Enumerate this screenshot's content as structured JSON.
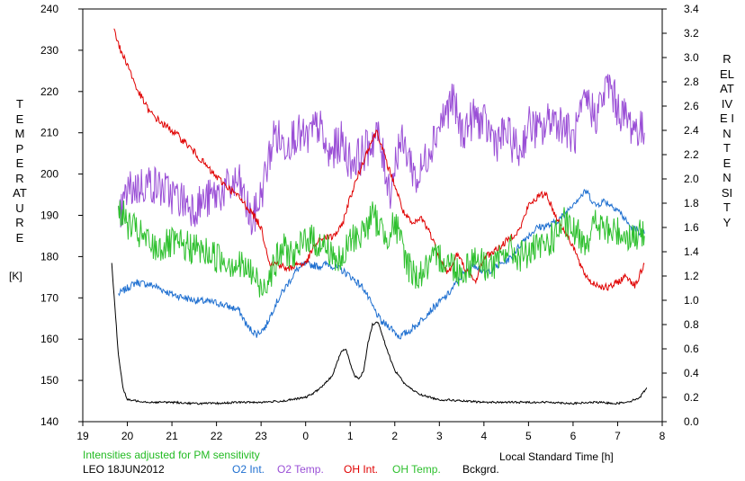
{
  "chart_data": {
    "type": "line",
    "note": "Intensities adjusted for PM sensitivity",
    "site_date": "LEO 18JUN2012",
    "xlabel": "Local Standard Time [h]",
    "ylabel_left": "TEMPERATURE",
    "ylabel_left_unit": "[K]",
    "ylabel_right": "RELATIVE INTENSITY",
    "x_ticks": [
      "19",
      "20",
      "21",
      "22",
      "23",
      "0",
      "1",
      "2",
      "3",
      "4",
      "5",
      "6",
      "7",
      "8"
    ],
    "xlim": [
      19,
      32
    ],
    "ylim_left": [
      140,
      240
    ],
    "ylim_right": [
      0.0,
      3.4
    ],
    "y_left_ticks": [
      "140",
      "150",
      "160",
      "170",
      "180",
      "190",
      "200",
      "210",
      "220",
      "230",
      "240"
    ],
    "y_right_ticks": [
      "0.0",
      "0.2",
      "0.4",
      "0.6",
      "0.8",
      "1.0",
      "1.2",
      "1.4",
      "1.6",
      "1.8",
      "2.0",
      "2.2",
      "2.4",
      "2.6",
      "2.8",
      "3.0",
      "3.2",
      "3.4"
    ],
    "colors": {
      "o2_int": "#1e6fd0",
      "o2_temp": "#9a4fd6",
      "oh_int": "#e00000",
      "oh_temp": "#2ec02e",
      "bckgrd": "#000000",
      "note": "#22bb22"
    },
    "series": [
      {
        "name": "O2 Int.",
        "axis": "right",
        "color": "#1e6fd0",
        "noise": 0.03,
        "x": [
          19.8,
          20.2,
          20.6,
          21.0,
          21.5,
          22.0,
          22.5,
          22.7,
          22.9,
          23.1,
          23.3,
          23.5,
          23.8,
          24.0,
          24.3,
          24.5,
          24.8,
          25.0,
          25.3,
          25.5,
          25.7,
          25.9,
          26.1,
          26.3,
          26.5,
          26.7,
          26.9,
          27.2,
          27.5,
          27.8,
          28.0,
          28.3,
          28.6,
          28.9,
          29.2,
          29.5,
          29.8,
          30.0,
          30.3,
          30.5,
          30.7,
          31.0,
          31.3,
          31.6
        ],
        "y": [
          1.05,
          1.15,
          1.12,
          1.05,
          1.0,
          0.98,
          0.92,
          0.78,
          0.72,
          0.78,
          0.95,
          1.08,
          1.25,
          1.3,
          1.28,
          1.3,
          1.25,
          1.2,
          1.1,
          0.95,
          0.82,
          0.78,
          0.7,
          0.74,
          0.8,
          0.88,
          0.95,
          1.05,
          1.2,
          1.3,
          1.22,
          1.28,
          1.35,
          1.5,
          1.6,
          1.62,
          1.7,
          1.8,
          1.9,
          1.78,
          1.82,
          1.75,
          1.6,
          1.55
        ]
      },
      {
        "name": "O2 Temp.",
        "axis": "left",
        "color": "#9a4fd6",
        "noise": 5,
        "x": [
          19.8,
          20.0,
          20.5,
          21.0,
          21.5,
          22.0,
          22.5,
          22.8,
          23.0,
          23.3,
          23.5,
          23.8,
          24.0,
          24.3,
          24.5,
          24.8,
          25.0,
          25.3,
          25.6,
          25.9,
          26.1,
          26.3,
          26.5,
          26.8,
          27.0,
          27.3,
          27.5,
          27.8,
          28.0,
          28.3,
          28.5,
          28.8,
          29.0,
          29.3,
          29.5,
          29.8,
          30.0,
          30.3,
          30.5,
          30.8,
          31.0,
          31.3,
          31.6
        ],
        "y": [
          188,
          196,
          198,
          195,
          192,
          195,
          198,
          188,
          195,
          210,
          207,
          210,
          208,
          212,
          204,
          208,
          203,
          205,
          210,
          196,
          208,
          205,
          198,
          207,
          212,
          218,
          210,
          214,
          212,
          208,
          210,
          205,
          212,
          210,
          214,
          212,
          208,
          218,
          214,
          222,
          216,
          212,
          210
        ]
      },
      {
        "name": "OH Int.",
        "axis": "right",
        "color": "#e00000",
        "noise": 0.03,
        "x": [
          19.7,
          19.85,
          20.0,
          20.2,
          20.5,
          20.8,
          21.0,
          21.3,
          21.6,
          21.9,
          22.2,
          22.5,
          22.8,
          23.0,
          23.2,
          23.4,
          23.6,
          23.8,
          24.0,
          24.2,
          24.4,
          24.6,
          24.8,
          25.0,
          25.2,
          25.4,
          25.6,
          25.8,
          26.0,
          26.2,
          26.4,
          26.6,
          26.8,
          27.0,
          27.2,
          27.4,
          27.6,
          27.8,
          28.0,
          28.2,
          28.4,
          28.6,
          28.8,
          29.0,
          29.2,
          29.4,
          29.6,
          29.8,
          30.0,
          30.2,
          30.4,
          30.6,
          30.8,
          31.0,
          31.2,
          31.4,
          31.6
        ],
        "y": [
          3.25,
          3.05,
          2.95,
          2.75,
          2.55,
          2.45,
          2.4,
          2.3,
          2.18,
          2.05,
          1.95,
          1.85,
          1.72,
          1.6,
          1.3,
          1.3,
          1.25,
          1.3,
          1.3,
          1.45,
          1.52,
          1.52,
          1.6,
          1.85,
          2.05,
          2.25,
          2.4,
          2.15,
          1.95,
          1.72,
          1.62,
          1.68,
          1.55,
          1.35,
          1.22,
          1.38,
          1.25,
          1.15,
          1.35,
          1.4,
          1.45,
          1.52,
          1.58,
          1.78,
          1.85,
          1.88,
          1.7,
          1.58,
          1.45,
          1.25,
          1.15,
          1.12,
          1.1,
          1.15,
          1.2,
          1.12,
          1.3
        ]
      },
      {
        "name": "OH Temp.",
        "axis": "left",
        "color": "#2ec02e",
        "noise": 4,
        "x": [
          19.8,
          20.0,
          20.3,
          20.6,
          21.0,
          21.5,
          22.0,
          22.5,
          22.8,
          23.0,
          23.3,
          23.5,
          23.8,
          24.0,
          24.3,
          24.5,
          24.8,
          25.0,
          25.3,
          25.5,
          25.8,
          26.0,
          26.3,
          26.5,
          26.8,
          27.0,
          27.3,
          27.5,
          27.8,
          28.0,
          28.3,
          28.5,
          28.8,
          29.0,
          29.3,
          29.5,
          29.8,
          30.0,
          30.3,
          30.5,
          30.8,
          31.0,
          31.3,
          31.6
        ],
        "y": [
          192,
          188,
          185,
          182,
          183,
          182,
          180,
          178,
          176,
          172,
          178,
          182,
          180,
          185,
          183,
          182,
          178,
          184,
          186,
          190,
          185,
          188,
          178,
          175,
          178,
          180,
          178,
          176,
          180,
          178,
          178,
          182,
          180,
          181,
          182,
          184,
          188,
          186,
          184,
          188,
          186,
          186,
          185,
          185
        ]
      },
      {
        "name": "Bckgrd.",
        "axis": "right",
        "color": "#000000",
        "noise": 0.008,
        "x": [
          19.65,
          19.72,
          19.8,
          19.9,
          20.0,
          20.5,
          21.0,
          21.5,
          22.0,
          22.5,
          23.0,
          23.5,
          24.0,
          24.2,
          24.4,
          24.6,
          24.7,
          24.8,
          24.9,
          25.0,
          25.1,
          25.2,
          25.3,
          25.4,
          25.5,
          25.6,
          25.65,
          25.7,
          25.8,
          25.9,
          26.0,
          26.1,
          26.2,
          26.4,
          26.6,
          26.8,
          27.0,
          27.2,
          27.5,
          28.0,
          28.5,
          29.0,
          29.5,
          30.0,
          30.5,
          31.0,
          31.3,
          31.5,
          31.65
        ],
        "y": [
          1.3,
          0.95,
          0.55,
          0.28,
          0.18,
          0.16,
          0.16,
          0.15,
          0.15,
          0.16,
          0.16,
          0.17,
          0.2,
          0.24,
          0.3,
          0.38,
          0.48,
          0.58,
          0.6,
          0.48,
          0.38,
          0.35,
          0.42,
          0.65,
          0.8,
          0.82,
          0.8,
          0.74,
          0.62,
          0.52,
          0.42,
          0.38,
          0.32,
          0.26,
          0.22,
          0.2,
          0.18,
          0.18,
          0.17,
          0.16,
          0.16,
          0.16,
          0.16,
          0.15,
          0.16,
          0.15,
          0.17,
          0.2,
          0.28
        ]
      }
    ]
  }
}
